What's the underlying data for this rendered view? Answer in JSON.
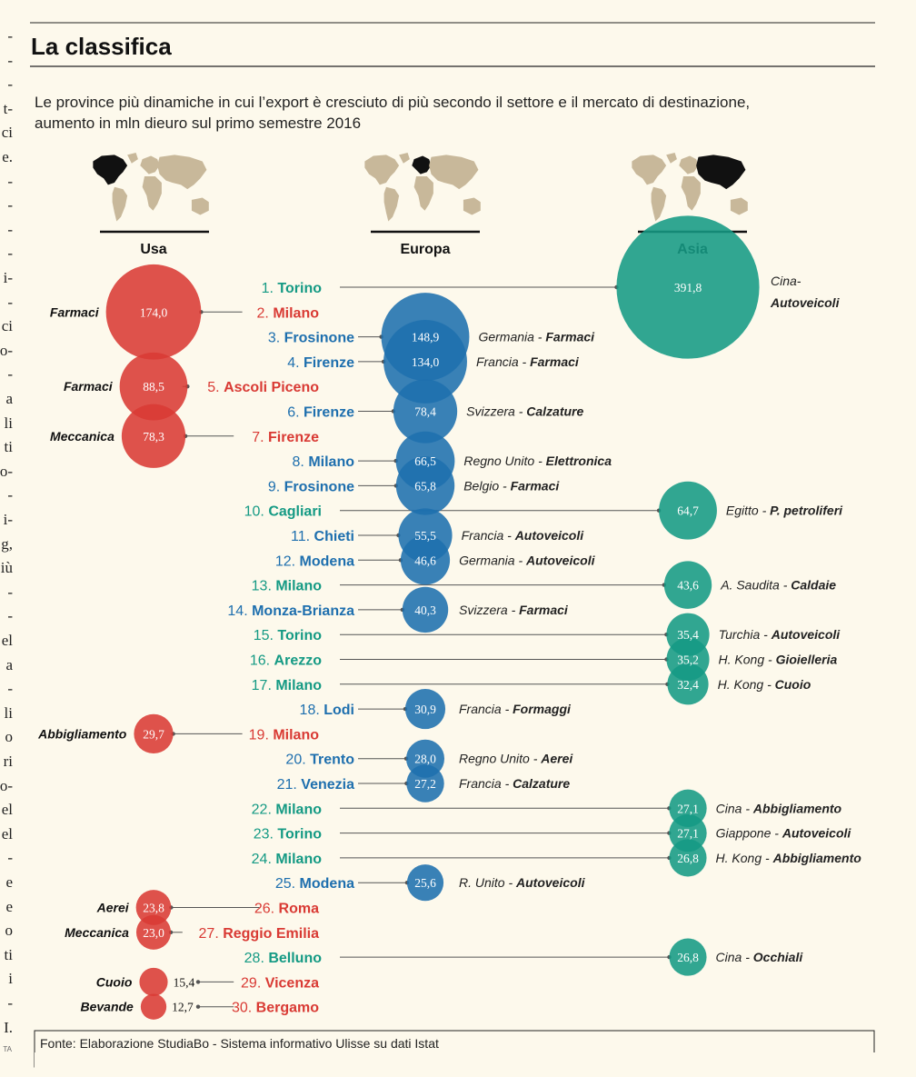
{
  "page": {
    "title": "La classifica",
    "subtitle_line1": "Le province più dinamiche in cui l’export è cresciuto di più secondo il settore e il mercato di destinazione,",
    "subtitle_line2": "aumento in mln dieuro sul primo semestre 2016",
    "source": "Fonte: Elaborazione StudiaBo - Sistema informativo Ulisse su dati Istat",
    "margin_letters": [
      "-",
      "-",
      "-",
      "t-",
      "ci",
      "e.",
      "-",
      "-",
      "-",
      "-",
      "i-",
      "-",
      "ci",
      "o-",
      "-",
      "a",
      "li",
      "ti",
      "o-",
      "-",
      "i-",
      "g,",
      "iù",
      "-",
      "-",
      "el",
      "a",
      "-",
      "li",
      "o",
      "ri",
      "o-",
      "el",
      "el",
      "-",
      "e",
      "e",
      "o",
      "ti",
      "i",
      "-",
      "I."
    ],
    "credit": "TA"
  },
  "chart_data": {
    "type": "bubble-ranking",
    "columns": [
      {
        "key": "usa",
        "label": "Usa",
        "color": "#d93a34"
      },
      {
        "key": "europa",
        "label": "Europa",
        "color": "#1e6fae"
      },
      {
        "key": "asia",
        "label": "Asia",
        "color": "#159a84"
      }
    ],
    "colors": {
      "usa": "#d93a34",
      "europa": "#1e6fae",
      "asia": "#159a84",
      "map": "#c8b89a",
      "highlight": "#111111"
    },
    "rows": [
      {
        "rank": "1.",
        "province": "Torino",
        "market": "asia",
        "value": 391.8,
        "value_label": "391,8",
        "country": "Cina-",
        "sector": "Autoveicoli"
      },
      {
        "rank": "2.",
        "province": "Milano",
        "market": "usa",
        "value": 174.0,
        "value_label": "174,0",
        "country": "",
        "sector": "Farmaci"
      },
      {
        "rank": "3.",
        "province": "Frosinone",
        "market": "europa",
        "value": 148.9,
        "value_label": "148,9",
        "country": "Germania - ",
        "sector": "Farmaci"
      },
      {
        "rank": "4.",
        "province": "Firenze",
        "market": "europa",
        "value": 134.0,
        "value_label": "134,0",
        "country": "Francia - ",
        "sector": "Farmaci"
      },
      {
        "rank": "5.",
        "province": "Ascoli Piceno",
        "market": "usa",
        "value": 88.5,
        "value_label": "88,5",
        "country": "",
        "sector": "Farmaci"
      },
      {
        "rank": "6.",
        "province": "Firenze",
        "market": "europa",
        "value": 78.4,
        "value_label": "78,4",
        "country": "Svizzera - ",
        "sector": "Calzature"
      },
      {
        "rank": "7.",
        "province": "Firenze",
        "market": "usa",
        "value": 78.3,
        "value_label": "78,3",
        "country": "",
        "sector": "Meccanica"
      },
      {
        "rank": "8.",
        "province": "Milano",
        "market": "europa",
        "value": 66.5,
        "value_label": "66,5",
        "country": "Regno Unito - ",
        "sector": "Elettronica"
      },
      {
        "rank": "9.",
        "province": "Frosinone",
        "market": "europa",
        "value": 65.8,
        "value_label": "65,8",
        "country": "Belgio - ",
        "sector": "Farmaci"
      },
      {
        "rank": "10.",
        "province": "Cagliari",
        "market": "asia",
        "value": 64.7,
        "value_label": "64,7",
        "country": "Egitto - ",
        "sector": "P. petroliferi"
      },
      {
        "rank": "11.",
        "province": "Chieti",
        "market": "europa",
        "value": 55.5,
        "value_label": "55,5",
        "country": "Francia - ",
        "sector": "Autoveicoli"
      },
      {
        "rank": "12.",
        "province": "Modena",
        "market": "europa",
        "value": 46.6,
        "value_label": "46,6",
        "country": "Germania - ",
        "sector": "Autoveicoli"
      },
      {
        "rank": "13.",
        "province": "Milano",
        "market": "asia",
        "value": 43.6,
        "value_label": "43,6",
        "country": "A. Saudita - ",
        "sector": "Caldaie"
      },
      {
        "rank": "14.",
        "province": "Monza-Brianza",
        "market": "europa",
        "value": 40.3,
        "value_label": "40,3",
        "country": "Svizzera - ",
        "sector": "Farmaci"
      },
      {
        "rank": "15.",
        "province": "Torino",
        "market": "asia",
        "value": 35.4,
        "value_label": "35,4",
        "country": "Turchia - ",
        "sector": "Autoveicoli"
      },
      {
        "rank": "16.",
        "province": "Arezzo",
        "market": "asia",
        "value": 35.2,
        "value_label": "35,2",
        "country": "H. Kong - ",
        "sector": "Gioielleria"
      },
      {
        "rank": "17.",
        "province": "Milano",
        "market": "asia",
        "value": 32.4,
        "value_label": "32,4",
        "country": "H. Kong - ",
        "sector": "Cuoio"
      },
      {
        "rank": "18.",
        "province": "Lodi",
        "market": "europa",
        "value": 30.9,
        "value_label": "30,9",
        "country": "Francia - ",
        "sector": "Formaggi"
      },
      {
        "rank": "19.",
        "province": "Milano",
        "market": "usa",
        "value": 29.7,
        "value_label": "29,7",
        "country": "",
        "sector": "Abbigliamento"
      },
      {
        "rank": "20.",
        "province": "Trento",
        "market": "europa",
        "value": 28.0,
        "value_label": "28,0",
        "country": "Regno Unito - ",
        "sector": "Aerei"
      },
      {
        "rank": "21.",
        "province": "Venezia",
        "market": "europa",
        "value": 27.2,
        "value_label": "27,2",
        "country": "Francia - ",
        "sector": "Calzature"
      },
      {
        "rank": "22.",
        "province": "Milano",
        "market": "asia",
        "value": 27.1,
        "value_label": "27,1",
        "country": "Cina - ",
        "sector": "Abbigliamento"
      },
      {
        "rank": "23.",
        "province": "Torino",
        "market": "asia",
        "value": 27.1,
        "value_label": "27,1",
        "country": "Giappone - ",
        "sector": "Autoveicoli"
      },
      {
        "rank": "24.",
        "province": "Milano",
        "market": "asia",
        "value": 26.8,
        "value_label": "26,8",
        "country": "H. Kong - ",
        "sector": "Abbigliamento"
      },
      {
        "rank": "25.",
        "province": "Modena",
        "market": "europa",
        "value": 25.6,
        "value_label": "25,6",
        "country": "R. Unito - ",
        "sector": "Autoveicoli"
      },
      {
        "rank": "26.",
        "province": "Roma",
        "market": "usa",
        "value": 23.8,
        "value_label": "23,8",
        "country": "",
        "sector": "Aerei"
      },
      {
        "rank": "27.",
        "province": "Reggio Emilia",
        "market": "usa",
        "value": 23.0,
        "value_label": "23,0",
        "country": "",
        "sector": "Meccanica"
      },
      {
        "rank": "28.",
        "province": "Belluno",
        "market": "asia",
        "value": 26.8,
        "value_label": "26,8",
        "country": "Cina - ",
        "sector": "Occhiali"
      },
      {
        "rank": "29.",
        "province": "Vicenza",
        "market": "usa",
        "value": 15.4,
        "value_label": "15,4",
        "country": "",
        "sector": "Cuoio"
      },
      {
        "rank": "30.",
        "province": "Bergamo",
        "market": "usa",
        "value": 12.7,
        "value_label": "12,7",
        "country": "",
        "sector": "Bevande"
      }
    ]
  }
}
